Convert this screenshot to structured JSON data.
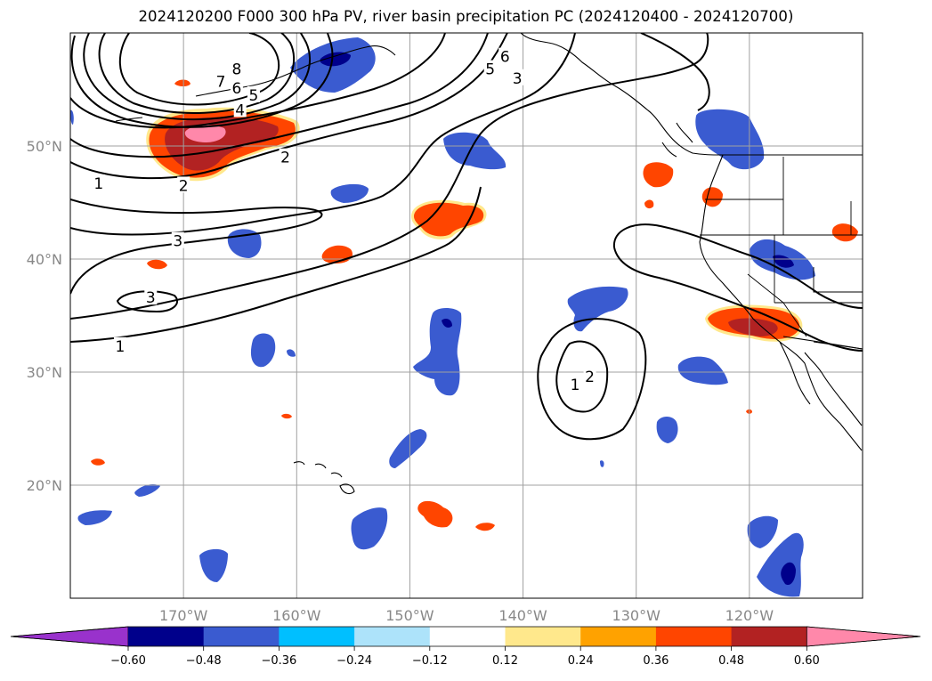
{
  "title": "2024120200 F000 300 hPa PV, river basin precipitation PC (2024120400 - 2024120700)",
  "map": {
    "lon_range": [
      -180,
      -110
    ],
    "lat_range": [
      10,
      60
    ],
    "lon_ticks": [
      {
        "value": -170,
        "label": "170°W"
      },
      {
        "value": -160,
        "label": "160°W"
      },
      {
        "value": -150,
        "label": "150°W"
      },
      {
        "value": -140,
        "label": "140°W"
      },
      {
        "value": -130,
        "label": "130°W"
      },
      {
        "value": -120,
        "label": "120°W"
      }
    ],
    "lat_ticks": [
      {
        "value": 50,
        "label": "50°N"
      },
      {
        "value": 40,
        "label": "40°N"
      },
      {
        "value": 30,
        "label": "30°N"
      },
      {
        "value": 20,
        "label": "20°N"
      }
    ],
    "gridlines": true
  },
  "contours": {
    "variable": "300 hPa PV",
    "labels": [
      {
        "text": "8",
        "lon": -165.3,
        "lat": 56.8
      },
      {
        "text": "7",
        "lon": -166.7,
        "lat": 55.7
      },
      {
        "text": "6",
        "lon": -165.3,
        "lat": 55.1
      },
      {
        "text": "5",
        "lon": -163.8,
        "lat": 54.5
      },
      {
        "text": "4",
        "lon": -165.0,
        "lat": 53.2
      },
      {
        "text": "2",
        "lon": -161.0,
        "lat": 49.0
      },
      {
        "text": "2",
        "lon": -170.0,
        "lat": 46.5
      },
      {
        "text": "1",
        "lon": -177.5,
        "lat": 46.7
      },
      {
        "text": "3",
        "lon": -170.5,
        "lat": 41.6
      },
      {
        "text": "3",
        "lon": -172.9,
        "lat": 36.6
      },
      {
        "text": "1",
        "lon": -175.6,
        "lat": 32.3
      },
      {
        "text": "6",
        "lon": -141.6,
        "lat": 57.9
      },
      {
        "text": "5",
        "lon": -142.9,
        "lat": 56.8
      },
      {
        "text": "3",
        "lon": -140.5,
        "lat": 56.0
      },
      {
        "text": "2",
        "lon": -134.1,
        "lat": 29.6
      },
      {
        "text": "1",
        "lon": -135.4,
        "lat": 28.9
      }
    ]
  },
  "colorbar": {
    "ticks": [
      "−0.60",
      "−0.48",
      "−0.36",
      "−0.24",
      "−0.12",
      "0.12",
      "0.24",
      "0.36",
      "0.48",
      "0.60"
    ],
    "colors": [
      "#9932cc",
      "#00008b",
      "#3a5bd0",
      "#00bfff",
      "#ade3fa",
      "#ffffff",
      "#ffe88c",
      "#ffa200",
      "#ff4500",
      "#b22222",
      "#ff88aa"
    ]
  }
}
